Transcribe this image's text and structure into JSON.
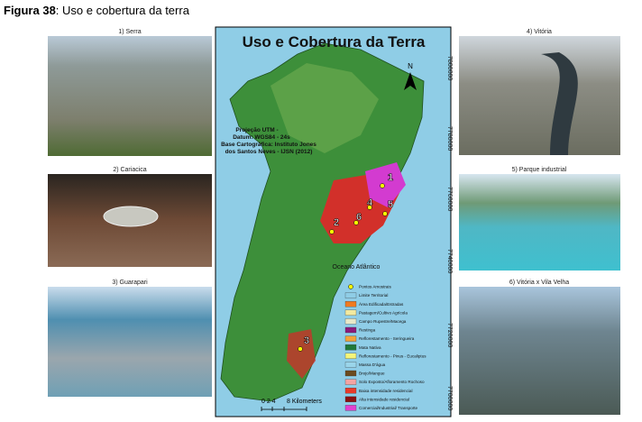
{
  "header": {
    "label": "Figura 38",
    "title": ": Uso e cobertura da terra"
  },
  "photos": [
    {
      "caption": "1) Serra"
    },
    {
      "caption": "2) Cariacica"
    },
    {
      "caption": "3) Guarapari"
    },
    {
      "caption": "4) Vitória"
    },
    {
      "caption": "5) Parque industrial"
    },
    {
      "caption": "6) Vitória x Vila Velha"
    }
  ],
  "map": {
    "title": "Uso e Cobertura da Terra",
    "projection": [
      "Projeção UTM -",
      "Datum: WGS84 - 24s",
      "Base Cartográfica: Instituto Jones",
      "dos Santos Neves - IJSN (2012)"
    ],
    "north": "N",
    "ocean": "Oceano Atlântico",
    "points": [
      "1",
      "2",
      "3",
      "4",
      "5",
      "6"
    ],
    "y_axis": [
      "7800000",
      "7780000",
      "7760000",
      "7740000",
      "7720000",
      "7700000"
    ],
    "scale": [
      "0 2 4",
      "8 Kilometers"
    ],
    "legend": [
      "Pontos Amostrais",
      "Limite Territorial",
      "Área Edificada/Estradas",
      "Pastagem/Cultivo Agrícola",
      "Campo Rupestre/Macega",
      "Restinga",
      "Reflorestamento - Seringueira",
      "Mata Nativa",
      "Reflorestamento - Pinus - Eucaliptus",
      "Massa D'água",
      "Brejo/Mangue",
      "Solo Exposto/Afloramento Rochoso",
      "Baixa intensidade residencial",
      "Alta intensidade residencial",
      "Comercial/Industrial/ Transporte"
    ]
  }
}
